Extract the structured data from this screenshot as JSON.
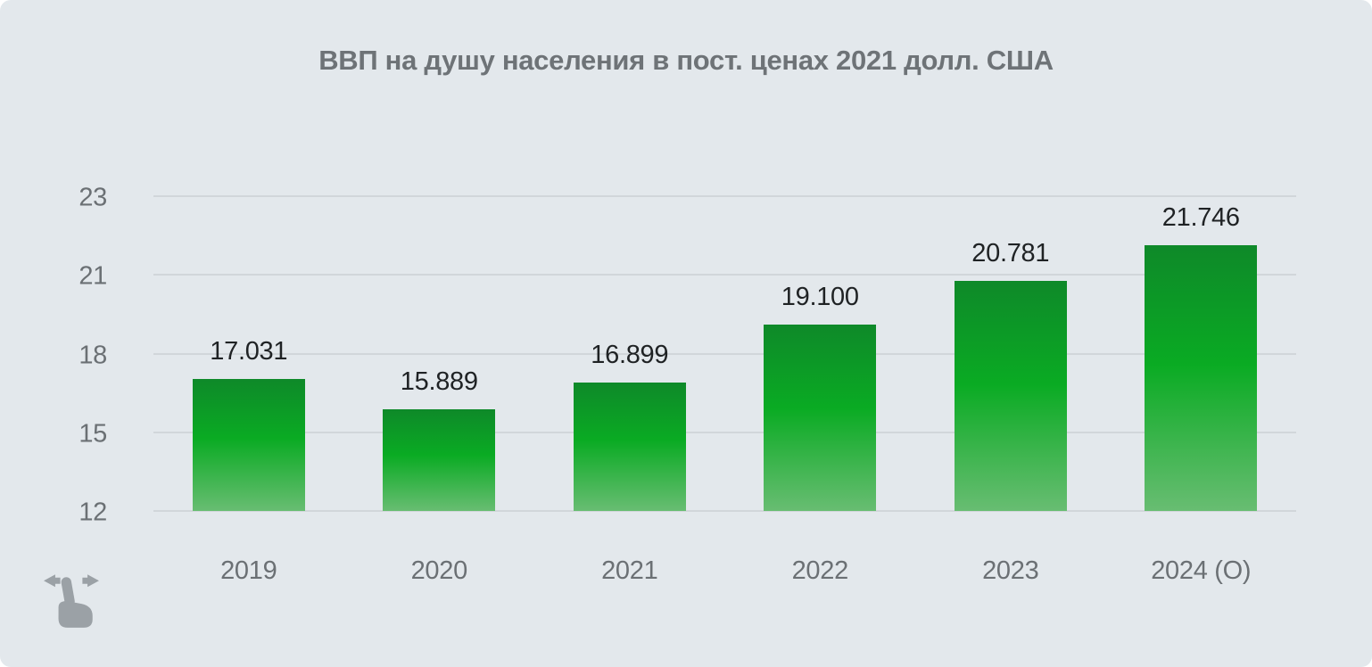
{
  "title": "ВВП на душу населения в пост. ценах 2021 долл. США",
  "colors": {
    "background": "#e3e8ec",
    "grid_line": "#d1d6da",
    "title_text": "#6e7377",
    "axis_text": "#6b7074",
    "value_text": "#1f2224",
    "swipe_icon": "#9ba1a6",
    "bar_gradient_top": "#0e8929",
    "bar_gradient_mid": "#0aab23",
    "bar_gradient_bottom": "#68bd72"
  },
  "icons": {
    "swipe_hint": "swipe-horizontal-hand-icon"
  },
  "chart_data": {
    "type": "bar",
    "title": "ВВП на душу населения в пост. ценах 2021 долл. США",
    "categories": [
      "2019",
      "2020",
      "2021",
      "2022",
      "2023",
      "2024 (О)"
    ],
    "values": [
      17.031,
      15.889,
      16.899,
      19.1,
      20.781,
      21.746
    ],
    "value_labels": [
      "17.031",
      "15.889",
      "16.899",
      "19.100",
      "20.781",
      "21.746"
    ],
    "xlabel": "",
    "ylabel": "",
    "y_ticks": [
      23,
      21,
      18,
      15,
      12
    ],
    "y_tick_labels": [
      "23",
      "21",
      "18",
      "15",
      "12"
    ],
    "y_baseline": 12,
    "grid": true,
    "legend": false,
    "bar_color": "green gradient, dark top to light bottom"
  }
}
